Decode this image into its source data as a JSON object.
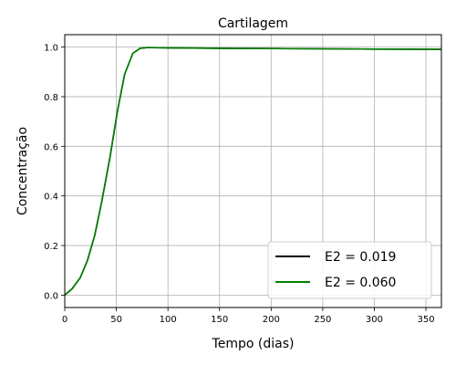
{
  "chart_data": {
    "type": "line",
    "title": "Cartilagem",
    "xlabel": "Tempo (dias)",
    "ylabel": "Concentração",
    "xlim": [
      0,
      365
    ],
    "ylim": [
      -0.05,
      1.05
    ],
    "xticks": [
      0,
      50,
      100,
      150,
      200,
      250,
      300,
      350
    ],
    "yticks": [
      0.0,
      0.2,
      0.4,
      0.6,
      0.8,
      1.0
    ],
    "xtick_labels": [
      "0",
      "50",
      "100",
      "150",
      "200",
      "250",
      "300",
      "350"
    ],
    "ytick_labels": [
      "0.0",
      "0.2",
      "0.4",
      "0.6",
      "0.8",
      "1.0"
    ],
    "grid": true,
    "legend_position": "bottom-right",
    "series": [
      {
        "name": "E2 = 0.019",
        "color": "#000000",
        "x": [
          0,
          7,
          15,
          22,
          29,
          36,
          44,
          51,
          58,
          66,
          73,
          80,
          100,
          150,
          200,
          250,
          300,
          365
        ],
        "y": [
          0.0,
          0.025,
          0.07,
          0.14,
          0.24,
          0.38,
          0.56,
          0.74,
          0.89,
          0.975,
          0.995,
          0.998,
          0.997,
          0.995,
          0.994,
          0.993,
          0.992,
          0.991
        ]
      },
      {
        "name": "E2 = 0.060",
        "color": "#008000",
        "x": [
          0,
          7,
          15,
          22,
          29,
          36,
          44,
          51,
          58,
          66,
          73,
          80,
          100,
          150,
          200,
          250,
          300,
          365
        ],
        "y": [
          0.0,
          0.025,
          0.07,
          0.14,
          0.24,
          0.38,
          0.56,
          0.74,
          0.89,
          0.975,
          0.995,
          0.998,
          0.997,
          0.995,
          0.994,
          0.993,
          0.992,
          0.991
        ]
      }
    ]
  }
}
